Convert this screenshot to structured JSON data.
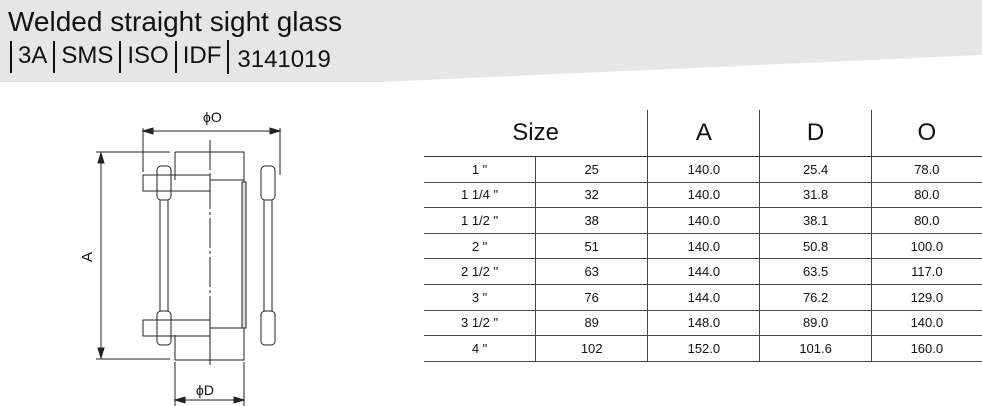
{
  "header": {
    "title": "Welded straight sight glass",
    "standards": [
      "3A",
      "SMS",
      "ISO",
      "IDF"
    ],
    "code": "3141019"
  },
  "drawing": {
    "label_o": "ϕO",
    "label_a": "A",
    "label_d": "ϕD"
  },
  "table": {
    "headers": {
      "size": "Size",
      "a": "A",
      "d": "D",
      "o": "O"
    },
    "rows": [
      [
        "1 \"",
        "25",
        "140.0",
        "25.4",
        "78.0"
      ],
      [
        "1 1/4 \"",
        "32",
        "140.0",
        "31.8",
        "80.0"
      ],
      [
        "1 1/2 \"",
        "38",
        "140.0",
        "38.1",
        "80.0"
      ],
      [
        "2 \"",
        "51",
        "140.0",
        "50.8",
        "100.0"
      ],
      [
        "2 1/2 \"",
        "63",
        "144.0",
        "63.5",
        "117.0"
      ],
      [
        "3 \"",
        "76",
        "144.0",
        "76.2",
        "129.0"
      ],
      [
        "3 1/2 \"",
        "89",
        "148.0",
        "89.0",
        "140.0"
      ],
      [
        "4 \"",
        "102",
        "152.0",
        "101.6",
        "160.0"
      ]
    ]
  }
}
